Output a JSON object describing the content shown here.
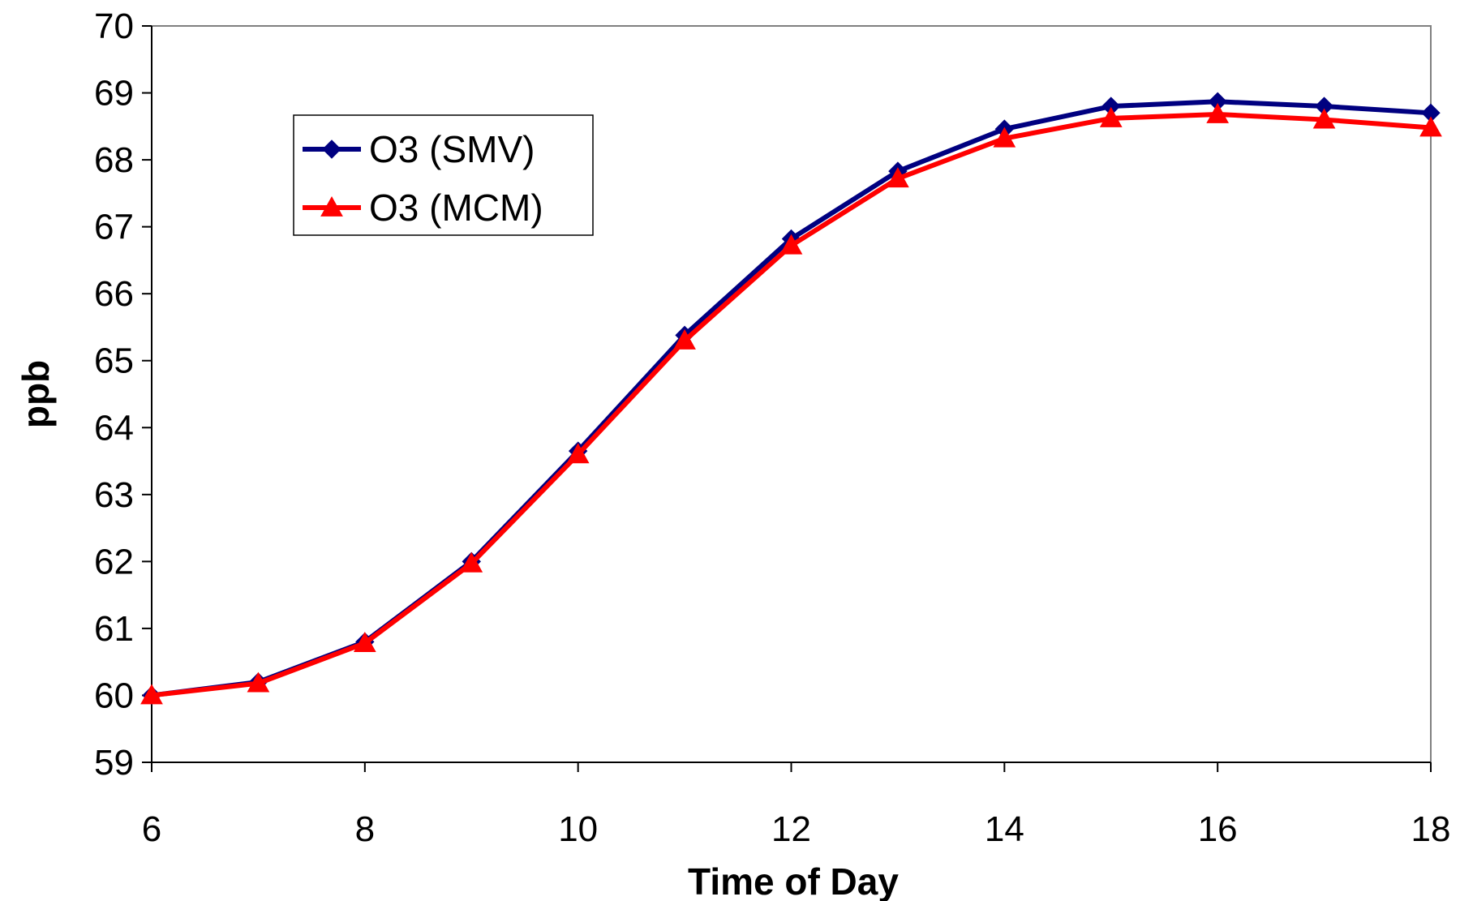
{
  "chart_data": {
    "type": "line",
    "title": "",
    "xlabel": "Time of Day",
    "ylabel": "ppb",
    "x": [
      6,
      7,
      8,
      9,
      10,
      11,
      12,
      13,
      14,
      15,
      16,
      17,
      18
    ],
    "xlim": [
      6,
      18
    ],
    "xticks": [
      6,
      8,
      10,
      12,
      14,
      16,
      18
    ],
    "ylim": [
      59,
      70
    ],
    "yticks": [
      59,
      60,
      61,
      62,
      63,
      64,
      65,
      66,
      67,
      68,
      69,
      70
    ],
    "grid": false,
    "legend_position": "upper-left",
    "series": [
      {
        "name": "O3 (SMV)",
        "color": "#000080",
        "marker": "diamond",
        "values": [
          60.0,
          60.2,
          60.8,
          62.0,
          63.65,
          65.38,
          66.82,
          67.83,
          68.46,
          68.8,
          68.87,
          68.8,
          68.7
        ]
      },
      {
        "name": "O3 (MCM)",
        "color": "#ff0000",
        "marker": "triangle",
        "values": [
          60.0,
          60.18,
          60.78,
          61.97,
          63.6,
          65.3,
          66.72,
          67.72,
          68.32,
          68.62,
          68.68,
          68.6,
          68.48
        ]
      }
    ]
  }
}
